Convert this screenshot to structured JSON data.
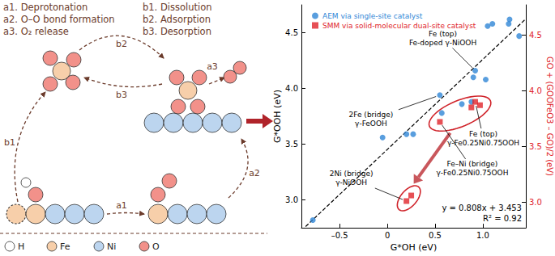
{
  "diagram": {
    "steps": [
      "a1. Deprotonation",
      "a2. O–O bond formation",
      "a3. O₂ release",
      "b1. Dissolution",
      "b2. Adsorption",
      "b3. Desorption"
    ],
    "arrow_labels": [
      "a1",
      "a2",
      "a3",
      "b1",
      "b2",
      "b3"
    ],
    "atoms": [
      {
        "label": "H",
        "color": "#ffffff"
      },
      {
        "label": "Fe",
        "color": "#f7cfaa"
      },
      {
        "label": "Ni",
        "color": "#bcd5ef"
      },
      {
        "label": "O",
        "color": "#f2918a"
      }
    ]
  },
  "chart_data": {
    "type": "scatter",
    "x_label": "G*OH (eV)",
    "y_label": "G*OOH (eV)",
    "y2_label": "GO + (GOOFeO3 – GO)/2 (eV)",
    "xlim": [
      -0.9,
      1.45
    ],
    "xticks": [
      {
        "value": -0.5,
        "label": "–0.5"
      },
      0,
      0.5,
      {
        "value": 1,
        "label": "1.0"
      }
    ],
    "ylim": [
      2.75,
      4.75
    ],
    "yticks": [
      {
        "value": 3,
        "label": "3.0"
      },
      3.5,
      {
        "value": 4,
        "label": "4.0"
      },
      4.5
    ],
    "y2lim": [
      2.77,
      4.77
    ],
    "y2ticks": [
      {
        "value": 3,
        "label": "3.0"
      },
      3.5,
      {
        "value": 4,
        "label": "4.0"
      },
      4.5
    ],
    "grid": false,
    "legend": "upper left",
    "series": [
      {
        "name": "AEM via single-site catalyst",
        "color": "#2f86d6",
        "marker": "circle",
        "x": [
          -0.78,
          -0.05,
          0.2,
          0.27,
          0.55,
          0.57,
          0.78,
          0.88,
          0.9,
          0.92,
          1.03,
          1.05,
          1.1,
          1.27,
          1.28,
          1.38
        ],
        "values": [
          2.82,
          3.56,
          3.59,
          3.59,
          3.94,
          3.78,
          3.86,
          3.88,
          4.1,
          4.16,
          4.08,
          4.56,
          4.58,
          4.58,
          4.62,
          4.47
        ]
      },
      {
        "name": "SMM via solid-molecular dual-site catalyst",
        "color": "#e0242b",
        "marker": "square",
        "axis": "y2",
        "x": [
          0.55,
          0.88,
          0.92,
          0.97,
          0.2,
          0.25
        ],
        "values": [
          3.72,
          3.85,
          3.9,
          3.87,
          3.01,
          3.06
        ]
      }
    ],
    "fit": {
      "slope": 0.808,
      "intercept": 3.453,
      "line_style": "dashed",
      "equation": "y = 0.808x + 3.453",
      "r2_label": "R² = 0.92"
    },
    "annotations": [
      {
        "text": [
          "Fe (top)",
          "Fe-doped γ-NiOOH"
        ],
        "series": 0,
        "index": 9
      },
      {
        "text": [
          "2Fe (bridge)",
          "γ-FeOOH"
        ],
        "series": 0,
        "index": 4
      },
      {
        "text": [
          "Fe (top)",
          "γ-Fe0.25Ni0.75OOH"
        ],
        "series": 1,
        "index": 2
      },
      {
        "text": [
          "Fe–Ni (bridge)",
          "γ-Fe0.25Ni0.75OOH"
        ],
        "series": 1,
        "index": 0
      },
      {
        "text": [
          "2Ni (bridge)",
          "γ-NiOOH"
        ],
        "series": 1,
        "index": 4
      }
    ],
    "circled": [
      [
        0,
        1,
        2,
        3
      ],
      [
        4,
        5
      ]
    ]
  }
}
